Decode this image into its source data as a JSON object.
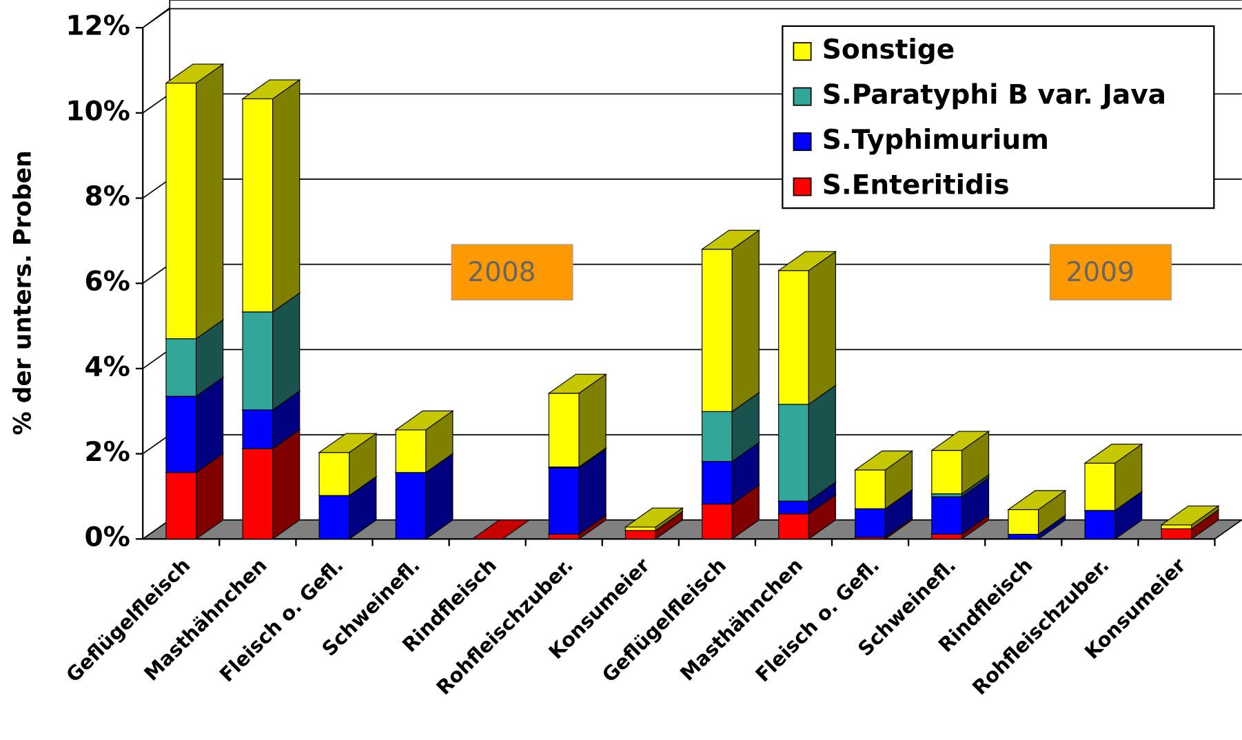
{
  "chart_data": {
    "type": "stacked_bar_3d",
    "y_label": "% der unters. Proben",
    "categories": [
      "Geflügelfleisch",
      "Masthähnchen",
      "Fleisch o. Gefl.",
      "Schweinefl.",
      "Rindfleisch",
      "Rohfleischzuber.",
      "Konsumeier",
      "Geflügelfleisch",
      "Masthähnchen",
      "Fleisch o. Gefl.",
      "Schweinefl.",
      "Rindfleisch",
      "Rohfleischzuber.",
      "Konsumeier"
    ],
    "series": [
      {
        "name": "S.Enteritidis",
        "color": "#ff0000",
        "values": [
          1.56,
          2.12,
          0,
          0,
          0,
          0.11,
          0.2,
          0.82,
          0.59,
          0.04,
          0.11,
          0,
          0,
          0.24
        ]
      },
      {
        "name": "S.Typhimurium",
        "color": "#0000ff",
        "values": [
          1.79,
          0.91,
          1.02,
          1.56,
          0,
          1.56,
          0,
          1.0,
          0.3,
          0.67,
          0.88,
          0.11,
          0.67,
          0
        ]
      },
      {
        "name": "S.Paratyphi B var. Java",
        "color": "#33a69a",
        "values": [
          1.35,
          2.3,
          0,
          0,
          0,
          0.02,
          0,
          1.17,
          2.27,
          0,
          0.07,
          0,
          0,
          0
        ]
      },
      {
        "name": "Sonstige",
        "color": "#ffff00",
        "values": [
          6.0,
          5.0,
          1.01,
          1.0,
          0,
          1.73,
          0.08,
          3.81,
          3.14,
          0.91,
          1.02,
          0.58,
          1.11,
          0.09
        ]
      }
    ],
    "ylim": [
      0,
      12
    ],
    "yticks": [
      {
        "value": 0,
        "label": "0%"
      },
      {
        "value": 2,
        "label": "2%"
      },
      {
        "value": 4,
        "label": "4%"
      },
      {
        "value": 6,
        "label": "6%"
      },
      {
        "value": 8,
        "label": "8%"
      },
      {
        "value": 10,
        "label": "10%"
      },
      {
        "value": 12,
        "label": "12%"
      }
    ],
    "grid": true,
    "legend": "upper right",
    "annotations": [
      "2008",
      "2009"
    ]
  }
}
